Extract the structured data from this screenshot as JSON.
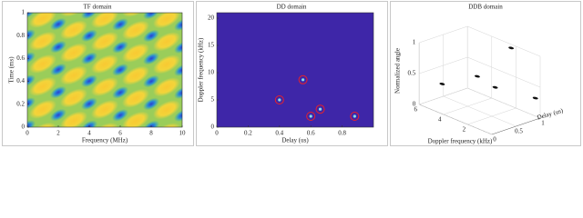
{
  "chart_data": [
    {
      "type": "heatmap",
      "title": "TF domain",
      "x_label": "Frequency (MHz)",
      "y_label": "Time (ms)",
      "xlim": [
        0,
        10
      ],
      "ylim": [
        0,
        1
      ],
      "xticks": [
        0,
        2,
        4,
        6,
        8,
        10
      ],
      "yticks": [
        0,
        0.2,
        0.4,
        0.6,
        0.8,
        1
      ]
    },
    {
      "type": "scatter",
      "title": "DD domain",
      "x_label": "Delay (us)",
      "y_label": "Doppler frequency (kHz)",
      "xlim": [
        0,
        1
      ],
      "ylim": [
        0,
        21
      ],
      "xticks": [
        0,
        0.2,
        0.4,
        0.6,
        0.8
      ],
      "yticks": [
        0,
        5,
        10,
        15,
        20
      ],
      "x": [
        0.4,
        0.55,
        0.6,
        0.66,
        0.88
      ],
      "values": [
        5.0,
        8.7,
        2.0,
        3.3,
        2.0
      ],
      "color": "#e8202a",
      "background": "#3e26a8"
    },
    {
      "type": "scatter3d",
      "title": "DDB domain",
      "x_label": "Delay (us)",
      "y_label": "Doppler frequency (kHz)",
      "z_label": "Normalized angle",
      "xlim": [
        0,
        1
      ],
      "ylim": [
        0,
        6
      ],
      "zlim": [
        0,
        1
      ],
      "xticks": [
        0,
        0.5,
        1
      ],
      "yticks": [
        2,
        4,
        6
      ],
      "zticks": [
        0,
        0.5,
        1
      ],
      "x": [
        0.9,
        0.4,
        0.55,
        0.62,
        0.9
      ],
      "y": [
        2,
        5.7,
        3.4,
        2.2,
        0
      ],
      "values": [
        1,
        0.25,
        0.52,
        0.42,
        0.35
      ],
      "color": "#111111"
    }
  ]
}
